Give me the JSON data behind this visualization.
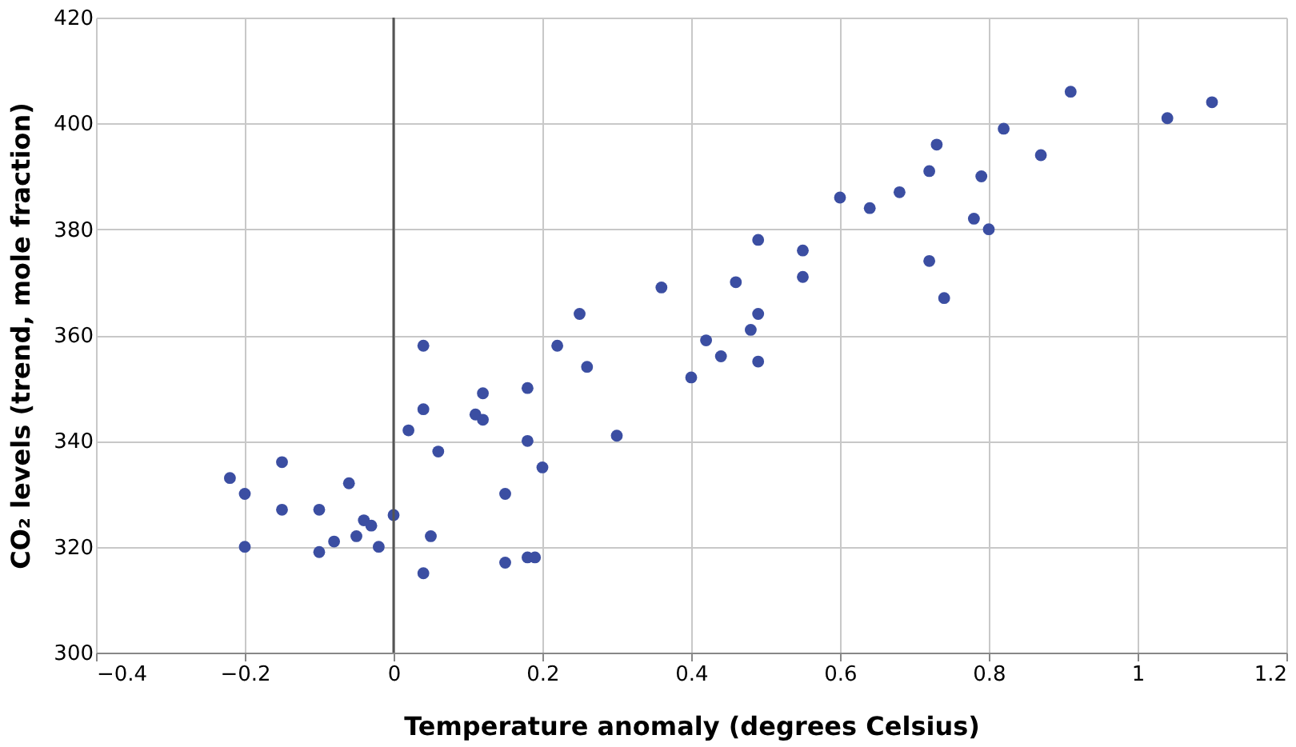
{
  "chart_data": {
    "type": "scatter",
    "xlabel": "Temperature anomaly (degrees Celsius)",
    "ylabel": "CO₂ levels (trend, mole fraction)",
    "xlim": [
      -0.4,
      1.2
    ],
    "xticks": [
      {
        "value": -0.4,
        "label": "−0.4"
      },
      {
        "value": -0.2,
        "label": "−0.2"
      },
      0,
      0.2,
      0.4,
      0.6,
      0.8,
      1,
      1.2
    ],
    "ylim": [
      300,
      420
    ],
    "yticks": [
      300,
      320,
      340,
      360,
      380,
      400,
      420
    ],
    "grid": true,
    "marker": "circle",
    "legend": false,
    "ref_lines": [
      {
        "axis": "x",
        "value": 0,
        "color": "#555555"
      }
    ],
    "series": [
      {
        "color": "#3b4ea2",
        "x": [
          -0.22,
          -0.2,
          -0.2,
          -0.15,
          -0.15,
          -0.1,
          -0.1,
          -0.08,
          -0.06,
          -0.05,
          -0.04,
          -0.03,
          -0.02,
          0.0,
          0.05,
          0.04,
          0.02,
          0.04,
          0.04,
          0.06,
          0.11,
          0.12,
          0.12,
          0.15,
          0.15,
          0.18,
          0.18,
          0.18,
          0.19,
          0.2,
          0.22,
          0.25,
          0.26,
          0.3,
          0.36,
          0.4,
          0.42,
          0.44,
          0.46,
          0.48,
          0.49,
          0.49,
          0.49,
          0.55,
          0.55,
          0.6,
          0.64,
          0.68,
          0.72,
          0.73,
          0.72,
          0.74,
          0.78,
          0.79,
          0.8,
          0.82,
          0.87,
          0.91,
          1.04,
          1.1
        ],
        "values": [
          333,
          330,
          320,
          336,
          327,
          319,
          327,
          321,
          332,
          322,
          325,
          324,
          320,
          326,
          322,
          315,
          342,
          346,
          358,
          338,
          345,
          349,
          344,
          330,
          317,
          350,
          340,
          318,
          318,
          335,
          358,
          364,
          354,
          341,
          369,
          352,
          359,
          356,
          370,
          361,
          364,
          355,
          378,
          376,
          371,
          386,
          384,
          387,
          391,
          396,
          374,
          367,
          382,
          390,
          380,
          399,
          394,
          406,
          401,
          404
        ]
      }
    ]
  }
}
